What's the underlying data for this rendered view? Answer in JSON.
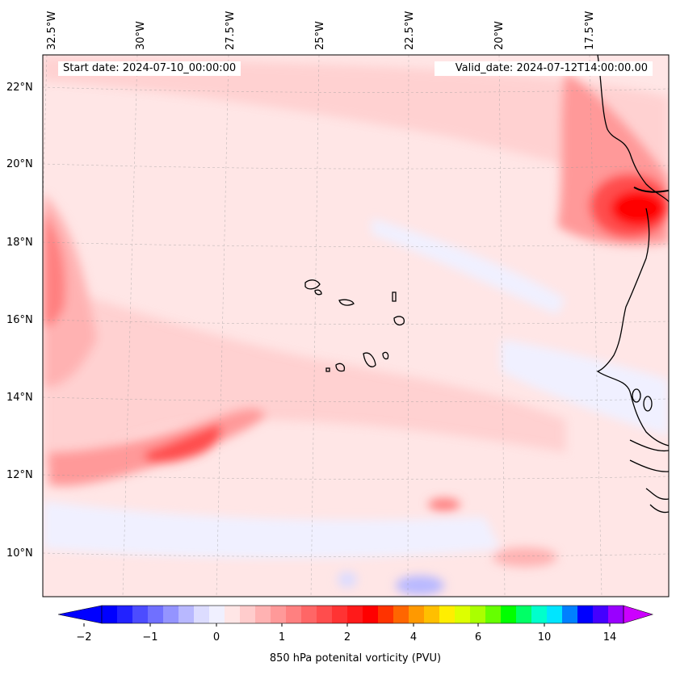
{
  "header": {
    "start_date": "Start date: 2024-07-10_00:00:00",
    "valid_date": "Valid_date: 2024-07-12T14:00:00.00"
  },
  "longitude_labels": [
    "32.5°W",
    "30°W",
    "27.5°W",
    "25°W",
    "22.5°W",
    "20°W",
    "17.5°W"
  ],
  "latitude_labels": [
    "22°N",
    "20°N",
    "18°N",
    "16°N",
    "14°N",
    "12°N",
    "10°N"
  ],
  "colorbar": {
    "label": "850 hPa potenital vorticity (PVU)",
    "ticks": [
      "−2",
      "−1",
      "0",
      "1",
      "2",
      "4",
      "6",
      "10",
      "14"
    ],
    "colors": [
      "#0000ff",
      "#2222ff",
      "#4c4cff",
      "#7070ff",
      "#9494ff",
      "#b8b8ff",
      "#dcdcff",
      "#f0f0ff",
      "#ffe6e6",
      "#ffcccc",
      "#ffb2b2",
      "#ff9999",
      "#ff8080",
      "#ff6666",
      "#ff4d4d",
      "#ff3333",
      "#ff1a1a",
      "#ff0000",
      "#ff3300",
      "#ff6600",
      "#ff9900",
      "#ffbf00",
      "#ffee00",
      "#ddff00",
      "#aaff00",
      "#66ff00",
      "#00ff00",
      "#00ff66",
      "#00ffcc",
      "#00e5ff",
      "#0080ff",
      "#0000ff",
      "#4400ff",
      "#9900ff"
    ],
    "extend_low": "#0000ff",
    "extend_high": "#cc00ff"
  }
}
